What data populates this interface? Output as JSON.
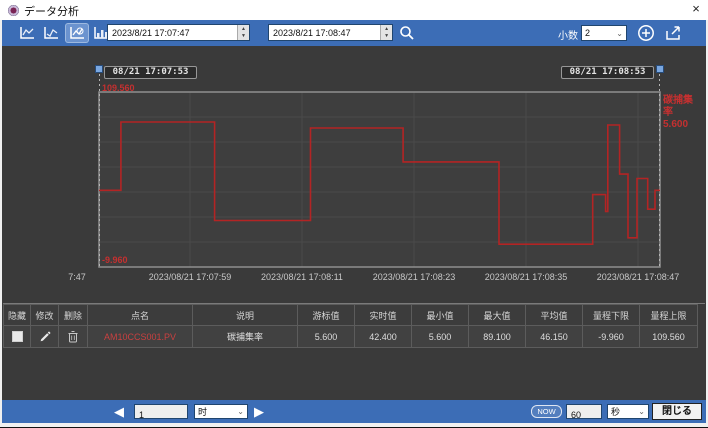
{
  "window": {
    "title": "データ分析",
    "close_label": "×"
  },
  "toolbar": {
    "icons": [
      "trend-chart-icon-1",
      "trend-chart-icon-2",
      "trend-chart-icon-3-active",
      "trend-chart-icon-4"
    ],
    "start_time": "2023/8/21 17:07:47",
    "end_time": "2023/8/21 17:08:47",
    "decimal_label": "小数",
    "decimal_value": "2"
  },
  "chart": {
    "left_cursor_label": "08/21 17:07:53",
    "right_cursor_label": "08/21 17:08:53",
    "y_max_label": "109.560",
    "y_min_label": "-9.960",
    "side_label_name": "碳捕集率",
    "side_label_value": "5.600",
    "x_labels": [
      "7:47",
      "2023/08/21 17:07:59",
      "2023/08/21 17:08:11",
      "2023/08/21 17:08:23",
      "2023/08/21 17:08:35",
      "2023/08/21 17:08:47"
    ]
  },
  "chart_data": {
    "type": "line",
    "line_style": "step-after",
    "x_window": [
      "2023/08/21 17:07:53",
      "2023/08/21 17:08:53"
    ],
    "ylim": [
      -9.96,
      109.56
    ],
    "grid": true,
    "series": [
      {
        "name": "AM10CCS001.PV",
        "color": "#b32424",
        "steps": [
          [
            0.0,
            42.4
          ],
          [
            0.039,
            89.1
          ],
          [
            0.206,
            21.8
          ],
          [
            0.377,
            85.0
          ],
          [
            0.542,
            61.8
          ],
          [
            0.713,
            5.6
          ],
          [
            0.88,
            39.5
          ],
          [
            0.903,
            28.0
          ],
          [
            0.907,
            87.0
          ],
          [
            0.928,
            53.5
          ],
          [
            0.943,
            10.0
          ],
          [
            0.959,
            50.5
          ],
          [
            0.978,
            29.5
          ],
          [
            0.991,
            42.4
          ]
        ],
        "note": "steps are [fraction of x_window, value]; value holds until next step"
      }
    ]
  },
  "table": {
    "headers": [
      "隐藏",
      "修改",
      "删除",
      "点名",
      "说明",
      "游标值",
      "实时值",
      "最小值",
      "最大值",
      "平均值",
      "量程下限",
      "量程上限"
    ],
    "rows": [
      {
        "hide_checked": true,
        "point": "AM10CCS001.PV",
        "desc": "碳捕集率",
        "cursor": "5.600",
        "realtime": "42.400",
        "min": "5.600",
        "max": "89.100",
        "avg": "46.150",
        "range_low": "-9.960",
        "range_high": "109.560"
      }
    ]
  },
  "bottom_bar": {
    "prev_label": "◀",
    "page_value": "1",
    "page_unit": "时",
    "next_label": "▶",
    "now_label": "NOW",
    "interval_value": "60",
    "interval_unit": "秒",
    "close_label": "閉じる"
  },
  "colors": {
    "toolbar_blue": "#3c6db6",
    "active_icon_blue": "#6b93cf",
    "line_red": "#b32424",
    "label_red": "#c53030",
    "window_bg": "#3a3a3a",
    "plot_bg": "#3e3e3e",
    "grid": "#4a4a4a",
    "cursor_handle_blue": "#7aa7e0"
  }
}
